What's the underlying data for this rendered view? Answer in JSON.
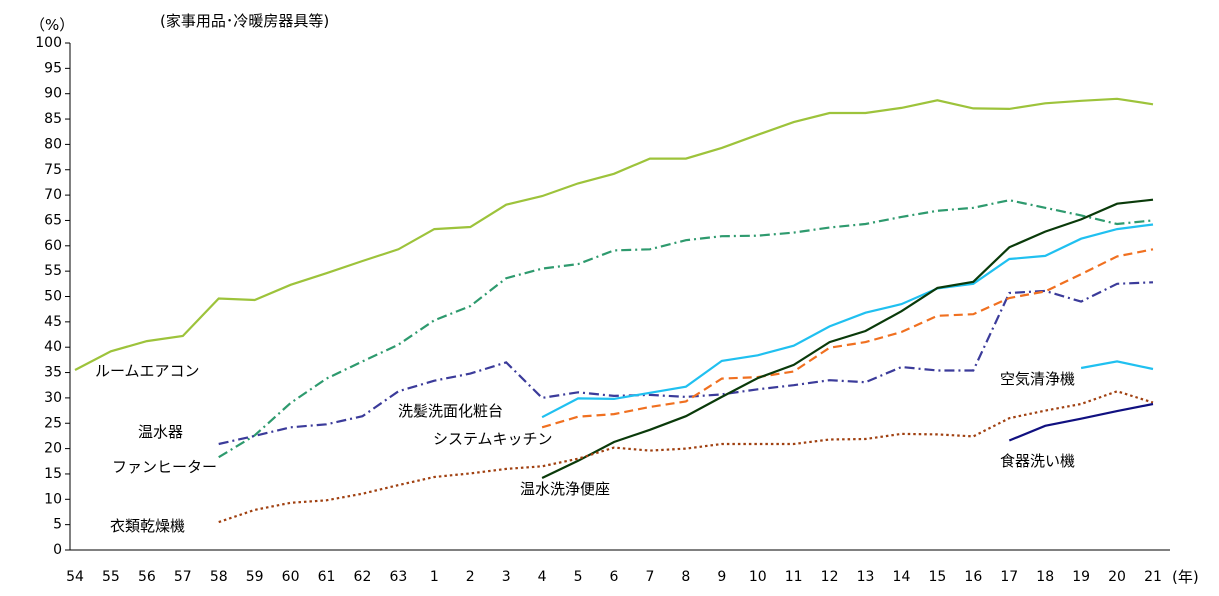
{
  "chart_data": {
    "type": "line",
    "title": "(家事用品･冷暖房器具等)",
    "y_unit": "（%）",
    "x_unit": "(年)",
    "categories": [
      "54",
      "55",
      "56",
      "57",
      "58",
      "59",
      "60",
      "61",
      "62",
      "63",
      "1",
      "2",
      "3",
      "4",
      "5",
      "6",
      "7",
      "8",
      "9",
      "10",
      "11",
      "12",
      "13",
      "14",
      "15",
      "16",
      "17",
      "18",
      "19",
      "20",
      "21"
    ],
    "ylim": [
      0,
      100
    ],
    "yticks": [
      0,
      5,
      10,
      15,
      20,
      25,
      30,
      35,
      40,
      45,
      50,
      55,
      60,
      65,
      70,
      75,
      80,
      85,
      90,
      95,
      100
    ],
    "series": [
      {
        "name": "ルームエアコン",
        "color": "#9dc33b",
        "dash": "solid",
        "values": [
          35.5,
          39.2,
          41.2,
          42.2,
          49.6,
          49.3,
          52.3,
          54.6,
          57.0,
          59.3,
          63.3,
          63.7,
          68.1,
          69.8,
          72.3,
          74.2,
          77.2,
          77.2,
          79.3,
          81.9,
          84.4,
          86.2,
          86.2,
          87.2,
          88.7,
          87.1,
          87.0,
          88.1,
          88.6,
          89.0,
          87.9
        ]
      },
      {
        "name": "ファンヒーター",
        "color": "#2e9a6e",
        "dash": "dashdot",
        "values": [
          null,
          null,
          null,
          null,
          18.3,
          22.6,
          29.0,
          33.8,
          37.2,
          40.5,
          45.3,
          48.1,
          53.6,
          55.5,
          56.4,
          59.1,
          59.3,
          61.1,
          61.9,
          62.0,
          62.6,
          63.6,
          64.3,
          65.7,
          66.9,
          67.5,
          69.0,
          67.5,
          66.0,
          64.3,
          65.0
        ]
      },
      {
        "name": "温水器",
        "color": "#3b3b9a",
        "dash": "dashdot",
        "values": [
          null,
          null,
          null,
          null,
          20.9,
          22.5,
          24.2,
          24.8,
          26.4,
          31.3,
          33.4,
          34.8,
          37.0,
          30.0,
          31.1,
          30.4,
          30.6,
          30.2,
          30.7,
          31.7,
          32.5,
          33.5,
          33.1,
          36.1,
          35.4,
          35.4,
          50.7,
          51.1,
          49.0,
          52.5,
          52.8
        ]
      },
      {
        "name": "システムキッチン",
        "color": "#f07020",
        "dash": "dashed",
        "values": [
          null,
          null,
          null,
          null,
          null,
          null,
          null,
          null,
          null,
          null,
          null,
          null,
          null,
          24.2,
          26.3,
          26.8,
          28.2,
          29.3,
          33.8,
          34.1,
          35.2,
          39.9,
          41.0,
          43.0,
          46.2,
          46.5,
          49.7,
          51.0,
          54.4,
          57.9,
          59.3
        ]
      },
      {
        "name": "洗髪洗面化粧台",
        "color": "#20c0f0",
        "dash": "solid",
        "values": [
          null,
          null,
          null,
          null,
          null,
          null,
          null,
          null,
          null,
          null,
          null,
          null,
          null,
          26.2,
          29.9,
          29.8,
          31.0,
          32.2,
          37.3,
          38.4,
          40.3,
          44.1,
          46.8,
          48.5,
          51.6,
          52.5,
          57.4,
          58.0,
          61.4,
          63.3,
          64.2
        ]
      },
      {
        "name": "温水洗浄便座",
        "color": "#0a3a0a",
        "dash": "solid",
        "values": [
          null,
          null,
          null,
          null,
          null,
          null,
          null,
          null,
          null,
          null,
          null,
          null,
          null,
          14.2,
          17.6,
          21.3,
          23.7,
          26.4,
          30.2,
          33.9,
          36.5,
          41.0,
          43.2,
          47.1,
          51.7,
          52.9,
          59.7,
          62.8,
          65.2,
          68.3,
          69.1
        ]
      },
      {
        "name": "衣類乾燥機",
        "color": "#a04010",
        "dash": "dotted",
        "values": [
          null,
          null,
          null,
          null,
          5.5,
          7.9,
          9.3,
          9.8,
          11.1,
          12.8,
          14.4,
          15.1,
          16.0,
          16.5,
          18.0,
          20.2,
          19.6,
          20.0,
          20.9,
          20.9,
          20.9,
          21.8,
          21.9,
          22.9,
          22.8,
          22.4,
          26.0,
          27.5,
          28.8,
          31.3,
          29.1
        ]
      },
      {
        "name": "空気清浄機",
        "color": "#20c0f0",
        "dash": "solid",
        "values": [
          null,
          null,
          null,
          null,
          null,
          null,
          null,
          null,
          null,
          null,
          null,
          null,
          null,
          null,
          null,
          null,
          null,
          null,
          null,
          null,
          null,
          null,
          null,
          null,
          null,
          null,
          null,
          null,
          35.9,
          37.2,
          35.7
        ]
      },
      {
        "name": "食器洗い機",
        "color": "#101080",
        "dash": "solid",
        "values": [
          null,
          null,
          null,
          null,
          null,
          null,
          null,
          null,
          null,
          null,
          null,
          null,
          null,
          null,
          null,
          null,
          null,
          null,
          null,
          null,
          null,
          null,
          null,
          null,
          null,
          null,
          21.6,
          24.5,
          25.9,
          27.4,
          28.8
        ]
      }
    ]
  }
}
